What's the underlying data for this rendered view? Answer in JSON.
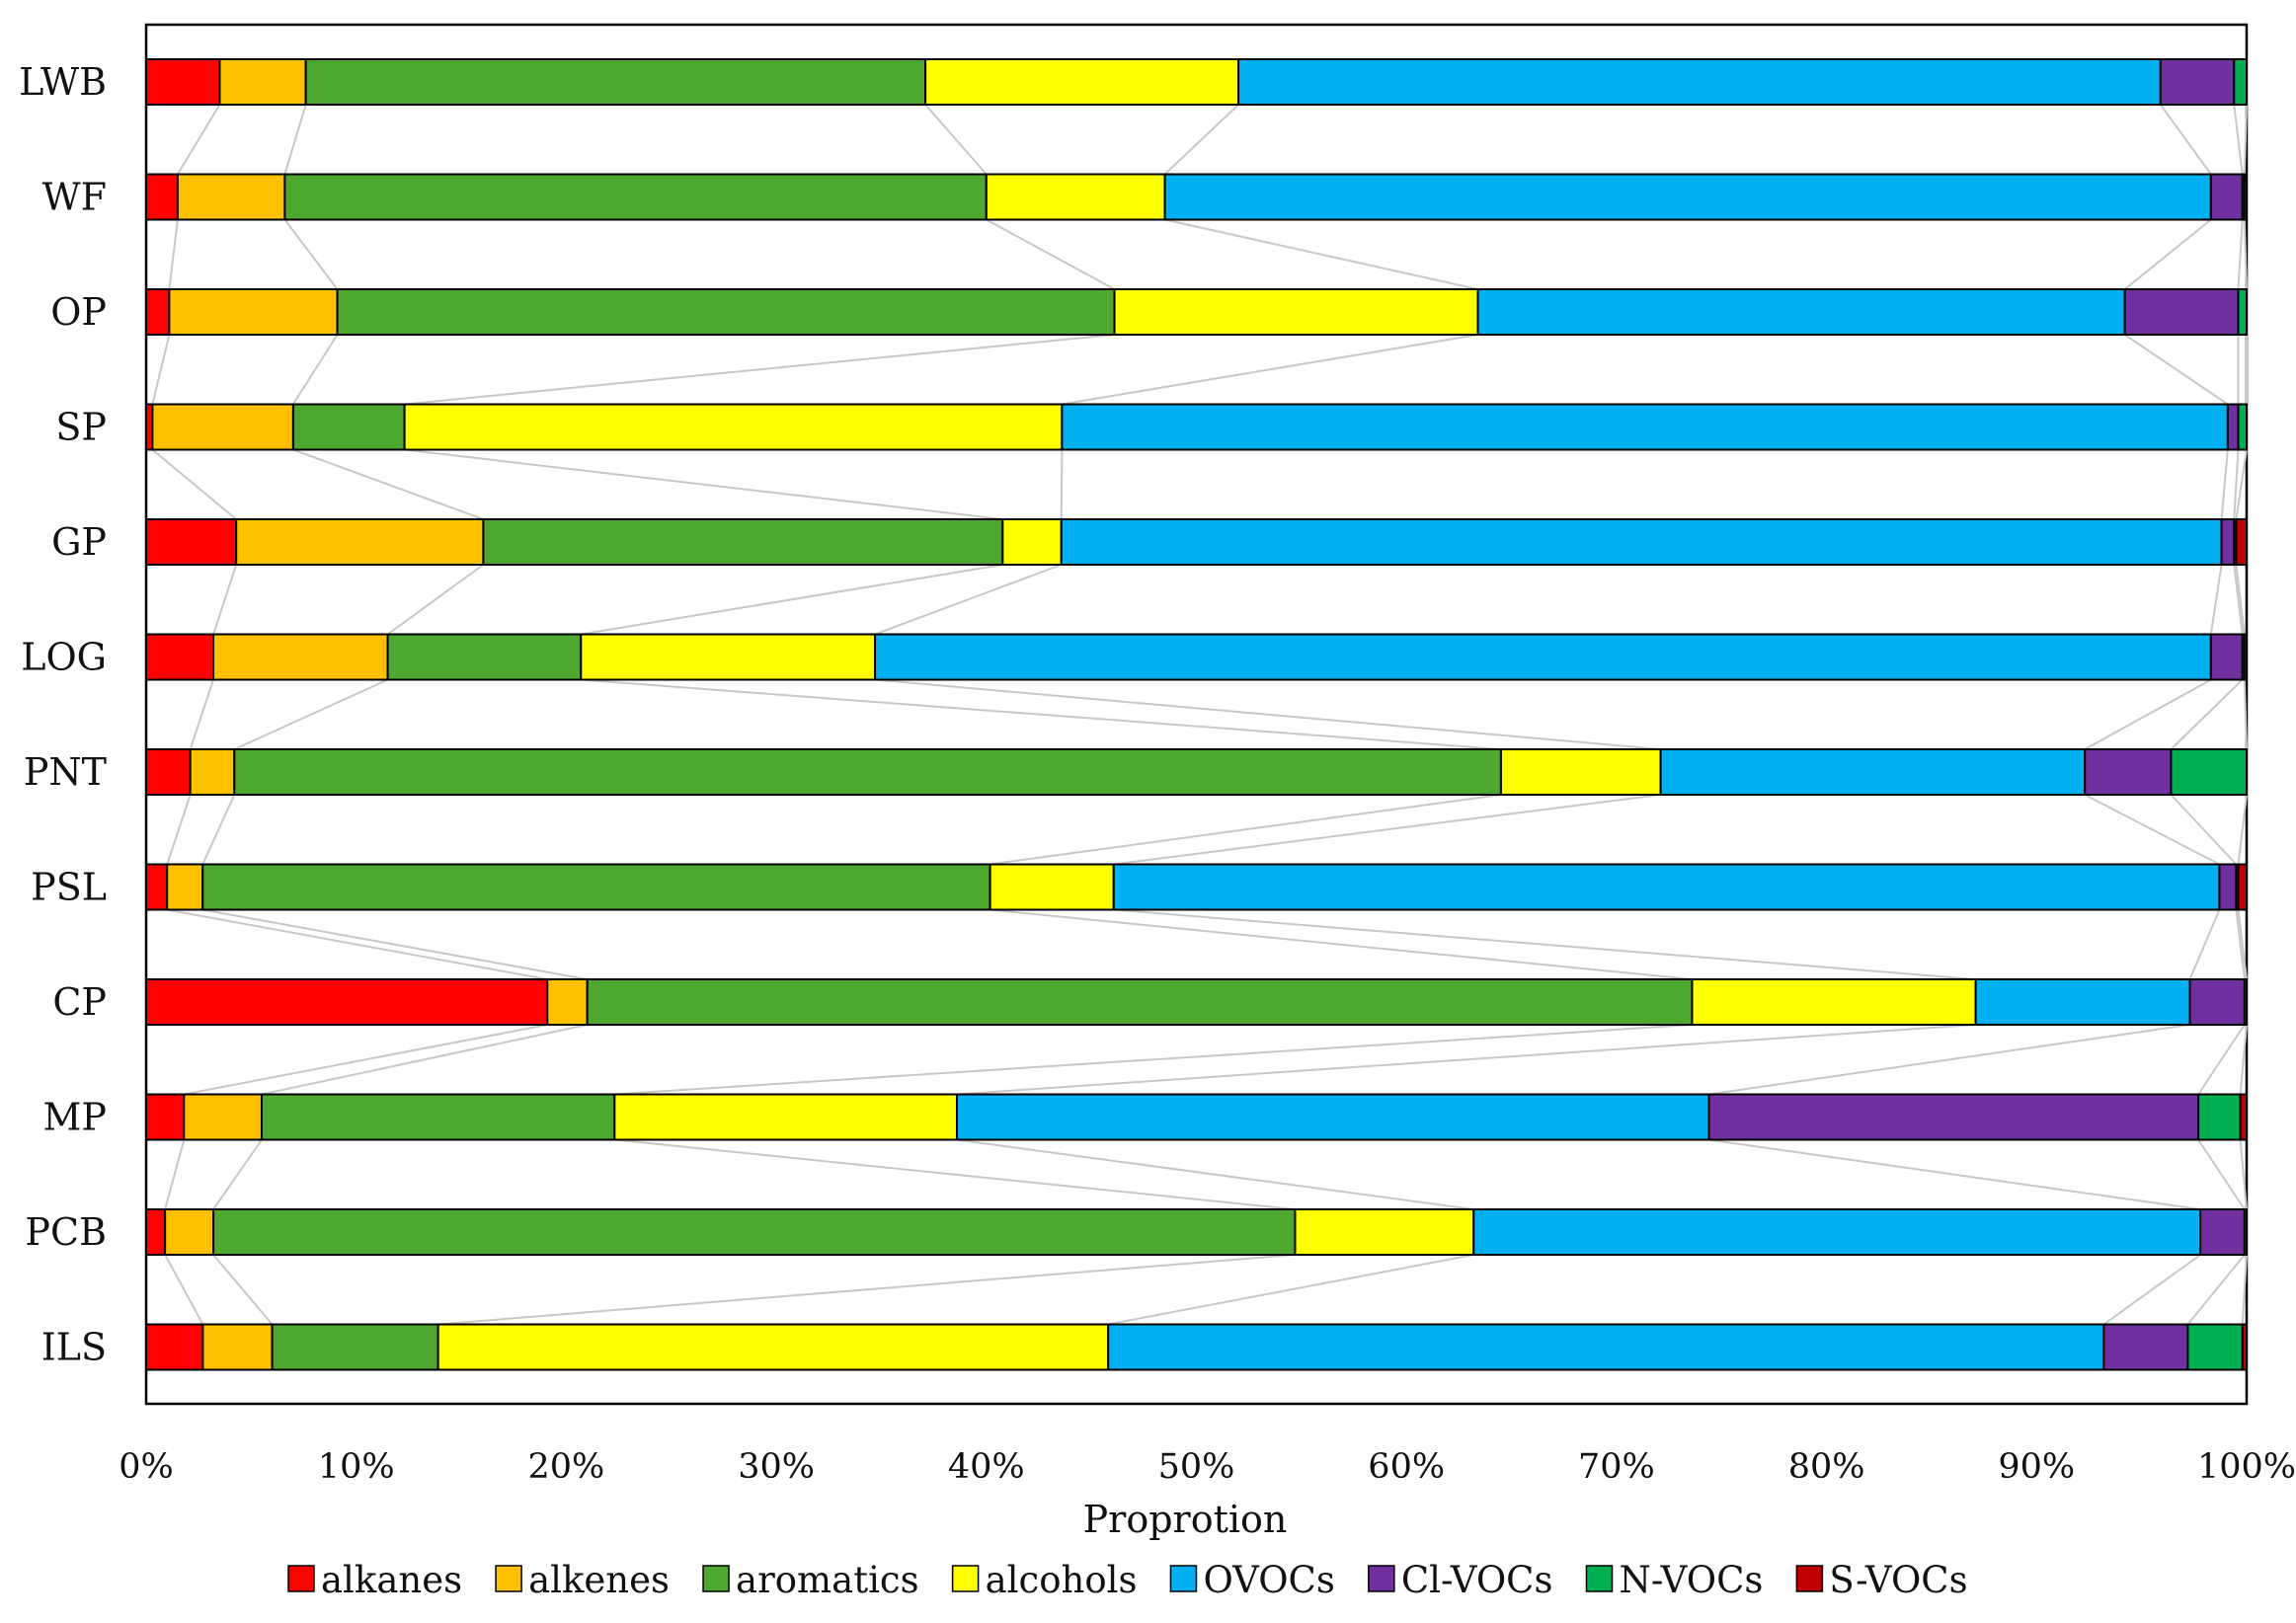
{
  "chart_data": {
    "type": "bar",
    "orientation": "horizontal",
    "stacked": "percent",
    "title": "",
    "xlabel": "Proprotion",
    "ylabel": "",
    "xlim": [
      0,
      100
    ],
    "xticks": [
      0,
      10,
      20,
      30,
      40,
      50,
      60,
      70,
      80,
      90,
      100
    ],
    "xtick_labels": [
      "0%",
      "10%",
      "20%",
      "30%",
      "40%",
      "50%",
      "60%",
      "70%",
      "80%",
      "90%",
      "100%"
    ],
    "grid": false,
    "legend_position": "bottom",
    "connector_lines": true,
    "categories": [
      "LWB",
      "WF",
      "OP",
      "SP",
      "GP",
      "LOG",
      "PNT",
      "PSL",
      "CP",
      "MP",
      "PCB",
      "ILS"
    ],
    "series": [
      {
        "name": "alkanes",
        "color": "#ff0000",
        "values": [
          3.5,
          1.5,
          1.1,
          0.3,
          4.3,
          3.2,
          2.1,
          1.0,
          19.1,
          1.8,
          0.9,
          2.7
        ]
      },
      {
        "name": "alkenes",
        "color": "#ffc000",
        "values": [
          4.1,
          5.1,
          8.0,
          6.7,
          11.8,
          8.3,
          2.1,
          1.7,
          1.9,
          3.7,
          2.3,
          3.3
        ]
      },
      {
        "name": "aromatics",
        "color": "#4ea72e",
        "values": [
          29.5,
          33.4,
          37.0,
          5.3,
          24.8,
          9.2,
          60.3,
          37.6,
          52.6,
          16.8,
          51.5,
          7.9
        ]
      },
      {
        "name": "alcohols",
        "color": "#ffff00",
        "values": [
          14.9,
          8.5,
          17.3,
          31.3,
          2.8,
          14.0,
          7.6,
          5.9,
          13.5,
          16.3,
          8.5,
          31.9
        ]
      },
      {
        "name": "OVOCs",
        "color": "#00b0f0",
        "values": [
          43.9,
          49.8,
          30.8,
          55.5,
          55.4,
          63.6,
          20.2,
          52.8,
          10.2,
          35.8,
          34.6,
          47.4
        ]
      },
      {
        "name": "Cl-VOCs",
        "color": "#7030a0",
        "values": [
          3.5,
          1.5,
          5.4,
          0.5,
          0.6,
          1.5,
          4.1,
          0.8,
          2.6,
          23.3,
          2.1,
          4.0
        ]
      },
      {
        "name": "N-VOCs",
        "color": "#00b050",
        "values": [
          0.6,
          0.1,
          0.4,
          0.4,
          0.1,
          0.1,
          3.6,
          0.1,
          0.1,
          2.0,
          0.1,
          2.6
        ]
      },
      {
        "name": "S-VOCs",
        "color": "#c00000",
        "values": [
          0.0,
          0.1,
          0.0,
          0.0,
          0.5,
          0.1,
          0.0,
          0.4,
          0.0,
          0.3,
          0.0,
          0.2
        ]
      }
    ]
  }
}
